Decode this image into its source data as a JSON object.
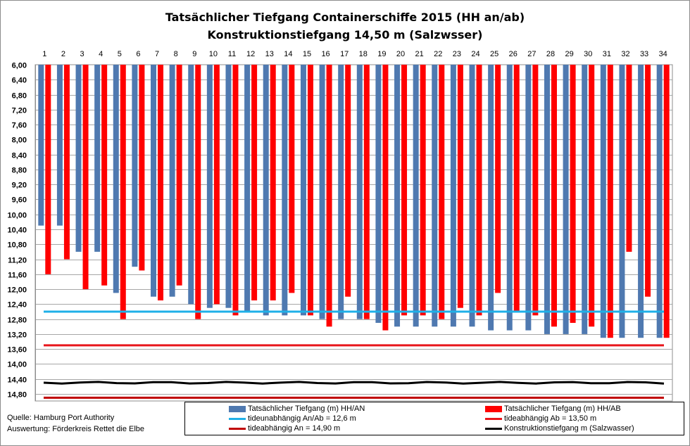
{
  "chart_data": {
    "type": "bar",
    "title_line1": "Tatsächlicher Tiefgang Containerschiffe 2015 (HH an/ab)",
    "title_line2": "Konstruktionstiefgang  14,50 m (Salzwsser)",
    "categories": [
      "1",
      "2",
      "3",
      "4",
      "5",
      "6",
      "7",
      "8",
      "9",
      "10",
      "11",
      "12",
      "13",
      "14",
      "15",
      "16",
      "17",
      "18",
      "19",
      "20",
      "21",
      "22",
      "23",
      "24",
      "25",
      "26",
      "27",
      "28",
      "29",
      "30",
      "31",
      "32",
      "33",
      "34"
    ],
    "y_axis": {
      "inverted": true,
      "ylim": [
        6.0,
        14.8
      ],
      "tick_labels": [
        "6,00",
        "6,40",
        "6,80",
        "7,20",
        "7,60",
        "8,00",
        "8,40",
        "8,80",
        "9,20",
        "9,60",
        "10,00",
        "10,40",
        "10,80",
        "11,20",
        "11,60",
        "12,00",
        "12,40",
        "12,80",
        "13,20",
        "13,60",
        "14,00",
        "14,40",
        "14,80"
      ],
      "tick_values": [
        6.0,
        6.4,
        6.8,
        7.2,
        7.6,
        8.0,
        8.4,
        8.8,
        9.2,
        9.6,
        10.0,
        10.4,
        10.8,
        11.2,
        11.6,
        12.0,
        12.4,
        12.8,
        13.2,
        13.6,
        14.0,
        14.4,
        14.8
      ]
    },
    "grid": true,
    "series": [
      {
        "name": "Tatsächlicher Tiefgang (m) HH/AN",
        "color": "#4f79b0",
        "values": [
          10.3,
          10.3,
          11.0,
          11.0,
          12.1,
          11.4,
          12.2,
          12.2,
          12.4,
          12.5,
          12.5,
          12.6,
          12.7,
          12.7,
          12.7,
          12.8,
          12.8,
          12.8,
          12.9,
          13.0,
          13.0,
          13.0,
          13.0,
          13.0,
          13.1,
          13.1,
          13.1,
          13.2,
          13.2,
          13.2,
          13.3,
          13.3,
          13.3,
          13.3
        ]
      },
      {
        "name": "Tatsächlicher Tiefgang (m) HH/AB",
        "color": "#ff0000",
        "values": [
          11.6,
          11.2,
          12.0,
          11.9,
          12.8,
          11.5,
          12.3,
          11.9,
          12.8,
          12.4,
          12.7,
          12.3,
          12.3,
          12.1,
          12.7,
          13.0,
          12.2,
          12.8,
          13.1,
          12.7,
          12.7,
          12.8,
          12.5,
          12.7,
          12.1,
          12.6,
          12.7,
          13.0,
          12.9,
          13.0,
          13.3,
          11.0,
          12.2,
          13.3
        ]
      }
    ],
    "lines": [
      {
        "name": "tideunabhängig An/Ab = 12,6 m",
        "color": "#1fb0e8",
        "value": 12.6
      },
      {
        "name": "tideabhängig Ab = 13,50 m",
        "color": "#e8161b",
        "value": 13.5
      },
      {
        "name": "tideabhängig An = 14,90 m",
        "color": "#c00000",
        "value": 14.9
      },
      {
        "name": "Konstruktionstiefgang  m (Salzwasser)",
        "color": "#000000",
        "value": 14.5
      }
    ],
    "legend_position": "bottom-right"
  },
  "source": {
    "line1": "Quelle: Hamburg Port Authority",
    "line2": "Auswertung: Förderkreis Rettet die Elbe"
  }
}
